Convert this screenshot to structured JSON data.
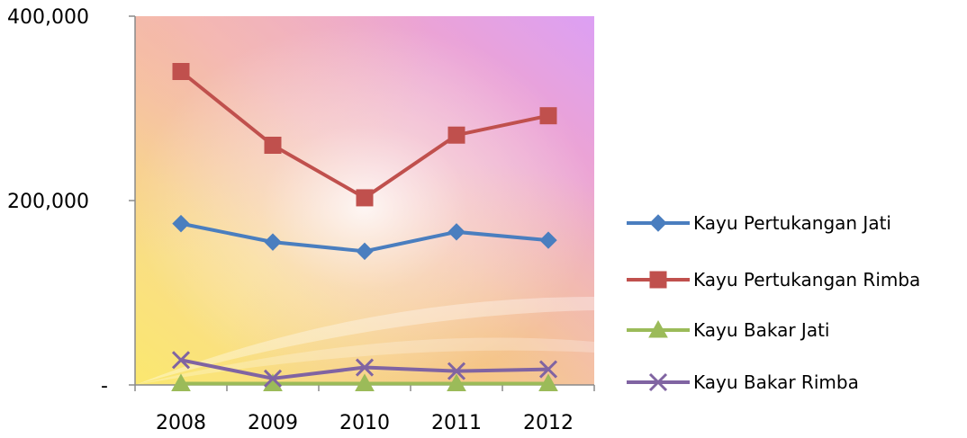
{
  "chart_data": {
    "type": "line",
    "categories": [
      "2008",
      "2009",
      "2010",
      "2011",
      "2012"
    ],
    "ylim": [
      0,
      400000
    ],
    "yticks": [
      {
        "value": 0,
        "label": "-"
      },
      {
        "value": 200000,
        "label": "200,000"
      },
      {
        "value": 400000,
        "label": "400,000"
      }
    ],
    "legend_position": "right",
    "grid": false,
    "series": [
      {
        "name": "Kayu Pertukangan Jati",
        "color": "#4a7ebf",
        "marker": "diamond",
        "values": [
          175000,
          155000,
          145000,
          166000,
          157000
        ]
      },
      {
        "name": "Kayu Pertukangan Rimba",
        "color": "#c0504d",
        "marker": "square",
        "values": [
          340000,
          260000,
          203000,
          271000,
          292000
        ]
      },
      {
        "name": "Kayu Bakar Jati",
        "color": "#9bbb59",
        "marker": "triangle",
        "values": [
          1500,
          1500,
          1500,
          1500,
          1500
        ]
      },
      {
        "name": "Kayu Bakar Rimba",
        "color": "#8064a2",
        "marker": "x",
        "values": [
          27000,
          7000,
          19000,
          15000,
          17000
        ]
      }
    ]
  }
}
